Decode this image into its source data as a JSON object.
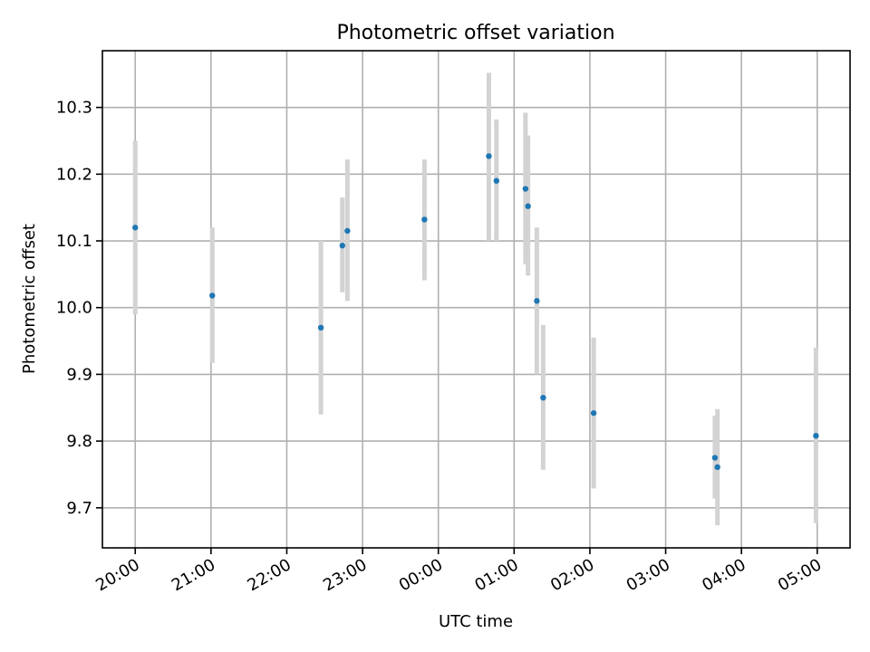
{
  "chart_data": {
    "type": "scatter",
    "title": "Photometric offset variation",
    "xlabel": "UTC time",
    "ylabel": "Photometric offset",
    "x_axis": {
      "kind": "time",
      "ticks": [
        "20:00",
        "21:00",
        "22:00",
        "23:00",
        "00:00",
        "01:00",
        "02:00",
        "03:00",
        "04:00",
        "05:00"
      ],
      "range": [
        "19:34",
        "05:26"
      ]
    },
    "y_axis": {
      "ticks": [
        "9.7",
        "9.8",
        "9.9",
        "10.0",
        "10.1",
        "10.2",
        "10.3"
      ],
      "range": [
        9.64,
        10.385
      ]
    },
    "grid": true,
    "points": [
      {
        "time": "20:00",
        "y": 10.12,
        "err_low": 9.99,
        "err_high": 10.25
      },
      {
        "time": "21:01",
        "y": 10.018,
        "err_low": 9.917,
        "err_high": 10.12
      },
      {
        "time": "22:27",
        "y": 9.97,
        "err_low": 9.84,
        "err_high": 10.1
      },
      {
        "time": "22:44",
        "y": 10.093,
        "err_low": 10.023,
        "err_high": 10.165
      },
      {
        "time": "22:48",
        "y": 10.115,
        "err_low": 10.01,
        "err_high": 10.222
      },
      {
        "time": "23:49",
        "y": 10.132,
        "err_low": 10.041,
        "err_high": 10.222
      },
      {
        "time": "00:40",
        "y": 10.227,
        "err_low": 10.1,
        "err_high": 10.352
      },
      {
        "time": "00:46",
        "y": 10.19,
        "err_low": 10.1,
        "err_high": 10.282
      },
      {
        "time": "01:09",
        "y": 10.178,
        "err_low": 10.065,
        "err_high": 10.292
      },
      {
        "time": "01:11",
        "y": 10.152,
        "err_low": 10.048,
        "err_high": 10.258
      },
      {
        "time": "01:18",
        "y": 10.01,
        "err_low": 9.9,
        "err_high": 10.12
      },
      {
        "time": "01:23",
        "y": 9.865,
        "err_low": 9.757,
        "err_high": 9.974
      },
      {
        "time": "02:03",
        "y": 9.842,
        "err_low": 9.729,
        "err_high": 9.955
      },
      {
        "time": "03:39",
        "y": 9.775,
        "err_low": 9.714,
        "err_high": 9.838
      },
      {
        "time": "03:41",
        "y": 9.761,
        "err_low": 9.674,
        "err_high": 9.848
      },
      {
        "time": "04:59",
        "y": 9.808,
        "err_low": 9.677,
        "err_high": 9.94
      }
    ],
    "colors": {
      "point": "#1f77b4",
      "errorbar": "#d3d3d3",
      "grid": "#b0b0b0"
    }
  }
}
